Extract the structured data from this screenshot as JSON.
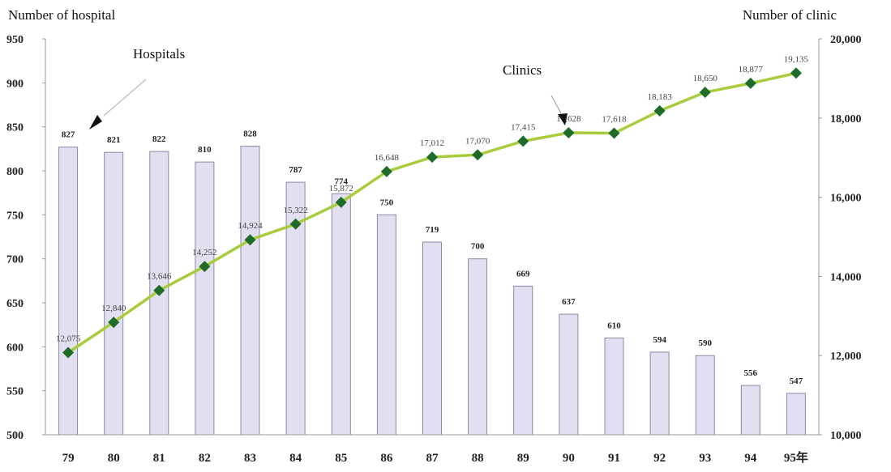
{
  "chart_data": {
    "type": "bar+line",
    "left_axis_title": "Number of hospital",
    "right_axis_title": "Number of clinic",
    "categories": [
      "79",
      "80",
      "81",
      "82",
      "83",
      "84",
      "85",
      "86",
      "87",
      "88",
      "89",
      "90",
      "91",
      "92",
      "93",
      "94",
      "95年"
    ],
    "left_ylim": [
      500,
      950
    ],
    "left_yticks": [
      "950",
      "900",
      "850",
      "800",
      "750",
      "700",
      "650",
      "600",
      "550",
      "500"
    ],
    "right_ylim": [
      10000,
      20000
    ],
    "right_yticks": [
      "20,000",
      "18,000",
      "16,000",
      "14,000",
      "12,000",
      "10,000"
    ],
    "series": [
      {
        "name": "Hospitals",
        "type": "bar",
        "axis": "left",
        "color": "#e2e0f0",
        "values": [
          827,
          821,
          822,
          810,
          828,
          787,
          774,
          750,
          719,
          700,
          669,
          637,
          610,
          594,
          590,
          556,
          547
        ],
        "labels": [
          "827",
          "821",
          "822",
          "810",
          "828",
          "787",
          "774",
          "750",
          "719",
          "700",
          "669",
          "637",
          "610",
          "594",
          "590",
          "556",
          "547"
        ]
      },
      {
        "name": "Clinics",
        "type": "line",
        "axis": "right",
        "line_color": "#a8cc3c",
        "marker_color": "#1e6b2a",
        "values": [
          12075,
          12840,
          13646,
          14252,
          14924,
          15322,
          15872,
          16648,
          17012,
          17070,
          17415,
          17628,
          17618,
          18183,
          18650,
          18877,
          19135
        ],
        "labels": [
          "12,075",
          "12,840",
          "13,646",
          "14,252",
          "14,924",
          "15,322",
          "15,872",
          "16,648",
          "17,012",
          "17,070",
          "17,415",
          "17,628",
          "17,618",
          "18,183",
          "18,650",
          "18,877",
          "19,135"
        ]
      }
    ],
    "grid": false
  }
}
